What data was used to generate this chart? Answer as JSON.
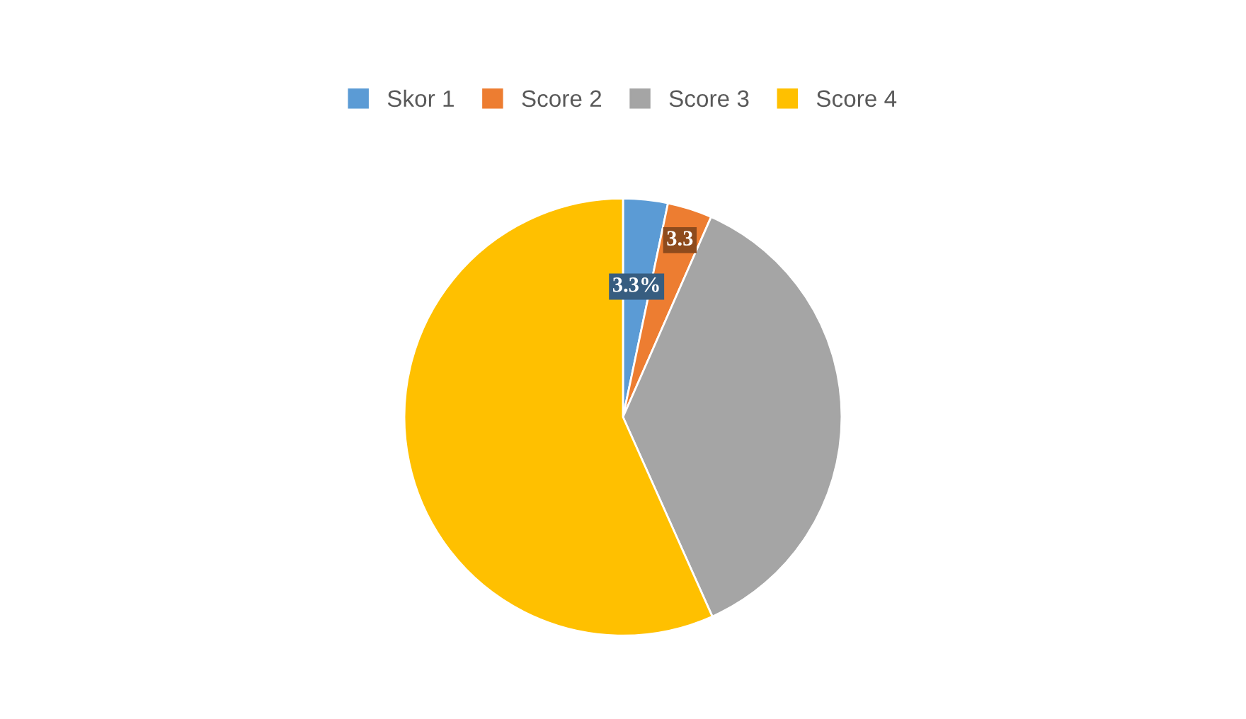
{
  "chart_data": {
    "type": "pie",
    "categories": [
      "Skor 1",
      "Score 2",
      "Score 3",
      "Score 4"
    ],
    "values": [
      3.3,
      3.3,
      36.7,
      56.7
    ],
    "colors": [
      "#5b9bd5",
      "#ed7d31",
      "#a5a5a5",
      "#ffc000"
    ],
    "value_labels": [
      "3.3%",
      "3.3",
      null,
      null
    ],
    "legend": "top"
  }
}
